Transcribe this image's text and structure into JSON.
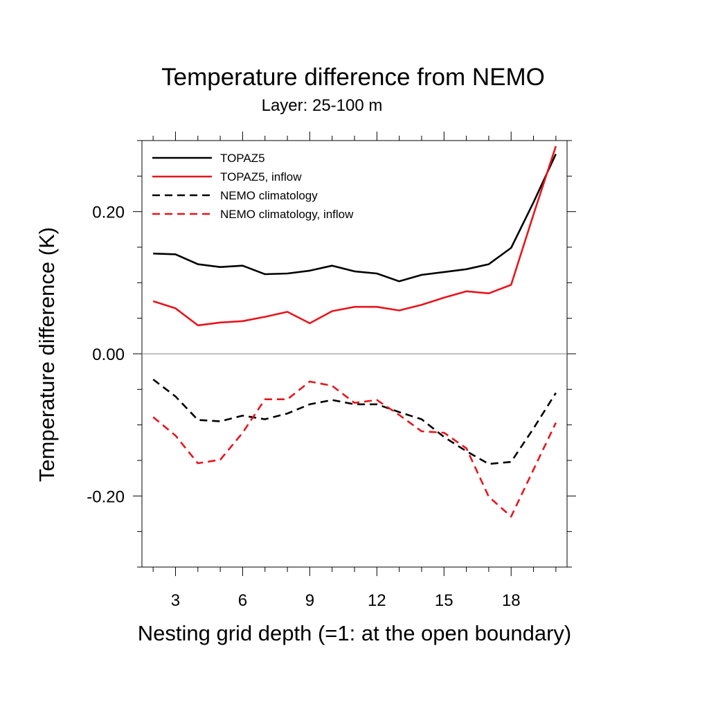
{
  "chart_data": {
    "type": "line",
    "title": "Temperature difference from NEMO",
    "subtitle": "Layer: 25-100 m",
    "xlabel": "Nesting grid depth (=1: at the open boundary)",
    "ylabel": "Temperature difference (K)",
    "xlim": [
      1.5,
      20.5
    ],
    "ylim": [
      -0.3,
      0.3
    ],
    "x_ticks": [
      3,
      6,
      9,
      12,
      15,
      18
    ],
    "x_tick_labels": [
      "3",
      "6",
      "9",
      "12",
      "15",
      "18"
    ],
    "y_ticks": [
      -0.2,
      0.0,
      0.2
    ],
    "y_tick_labels": [
      "-0.20",
      "0.00",
      "0.20"
    ],
    "zero_line": true,
    "grid": false,
    "legend_position": "top-left",
    "x": [
      2,
      3,
      4,
      5,
      6,
      7,
      8,
      9,
      10,
      11,
      12,
      13,
      14,
      15,
      16,
      17,
      18,
      19,
      20
    ],
    "series": [
      {
        "name": "TOPAZ5",
        "color": "#000000",
        "dash": "solid",
        "values": [
          0.141,
          0.14,
          0.126,
          0.122,
          0.124,
          0.112,
          0.113,
          0.117,
          0.124,
          0.116,
          0.113,
          0.102,
          0.111,
          0.115,
          0.119,
          0.126,
          0.149,
          0.213,
          0.281
        ]
      },
      {
        "name": "TOPAZ5, inflow",
        "color": "#e8141b",
        "dash": "solid",
        "values": [
          0.074,
          0.064,
          0.04,
          0.044,
          0.046,
          0.052,
          0.059,
          0.043,
          0.06,
          0.066,
          0.066,
          0.061,
          0.069,
          0.079,
          0.088,
          0.085,
          0.097,
          0.196,
          0.292
        ]
      },
      {
        "name": "NEMO climatology",
        "color": "#000000",
        "dash": "dashed",
        "values": [
          -0.036,
          -0.06,
          -0.093,
          -0.095,
          -0.087,
          -0.092,
          -0.084,
          -0.071,
          -0.065,
          -0.071,
          -0.071,
          -0.082,
          -0.092,
          -0.117,
          -0.137,
          -0.155,
          -0.152,
          -0.105,
          -0.055
        ]
      },
      {
        "name": "NEMO climatology, inflow",
        "color": "#e8141b",
        "dash": "dashed",
        "values": [
          -0.089,
          -0.115,
          -0.154,
          -0.149,
          -0.111,
          -0.064,
          -0.064,
          -0.039,
          -0.045,
          -0.069,
          -0.065,
          -0.086,
          -0.109,
          -0.111,
          -0.133,
          -0.201,
          -0.229,
          -0.163,
          -0.097
        ]
      }
    ]
  }
}
